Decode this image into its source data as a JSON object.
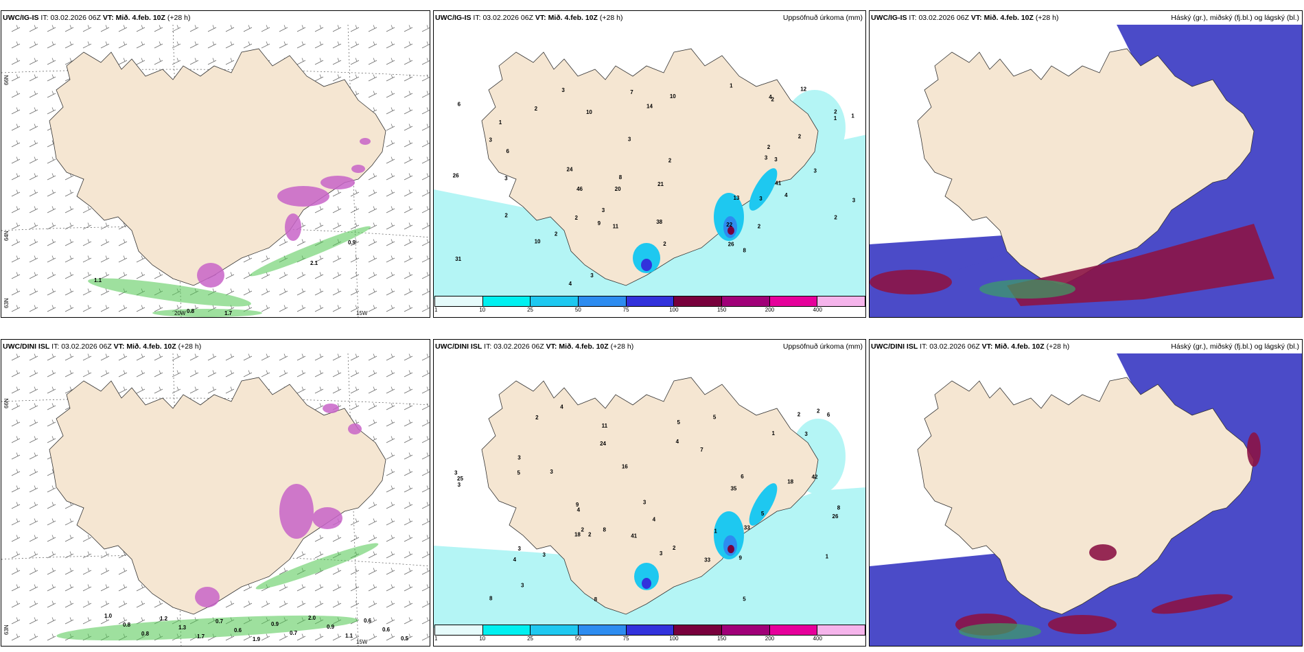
{
  "row_top": {
    "model": "UWC/IG-IS",
    "it_label": "IT:",
    "it_value": "03.02.2026 06Z",
    "vt_label": "VT:",
    "vt_value": "Mið. 4.feb. 10Z",
    "lead": "(+28 h)"
  },
  "row_bottom": {
    "model": "UWC/DINI ISL",
    "it_label": "IT:",
    "it_value": "03.02.2026 06Z",
    "vt_label": "VT:",
    "vt_value": "Mið. 4.feb. 10Z",
    "lead": "(+28 h)"
  },
  "precip_title": "Uppsöfnuð úrkoma (mm)",
  "cloud_title": "Háský (gr.), miðský (fj.bl.) og lágský (bl.)",
  "axis_labels": {
    "lat66": "66N",
    "lat64": "64N",
    "lat63": "63N",
    "lon20": "20W",
    "lon15": "15W"
  },
  "colorbar": {
    "ticks": [
      "1",
      "10",
      "25",
      "50",
      "75",
      "100",
      "150",
      "200",
      "400"
    ],
    "colors": [
      "#e6fbfb",
      "#00f0f0",
      "#1ec8f0",
      "#2d8cf0",
      "#3232dc",
      "#78003c",
      "#a00078",
      "#e6009b",
      "#f5b4eb"
    ]
  },
  "colors": {
    "land": "#f5e6d2",
    "precip_light": "#b4f5f5",
    "precip_mid": "#1ec8f0",
    "snow": "#c864c8",
    "green": "#50c850",
    "cloud_high": "#4b4bc8",
    "cloud_low": "#8c1446"
  },
  "wind_top_values": [
    "1.1",
    "0.8",
    "1.7",
    "2.1",
    "0.9"
  ],
  "wind_bottom_values": [
    "1.0",
    "0.8",
    "0.8",
    "1.2",
    "1.3",
    "1.7",
    "0.7",
    "0.6",
    "1.9",
    "0.9",
    "0.7",
    "2.0",
    "0.9",
    "1.1",
    "0.6",
    "0.6",
    "0.5"
  ],
  "precip_top_values": [
    "2",
    "10",
    "1",
    "2",
    "1",
    "3",
    "13",
    "3",
    "21",
    "3",
    "22",
    "10",
    "20",
    "4",
    "11",
    "26",
    "31",
    "38",
    "3",
    "2",
    "2",
    "2",
    "7",
    "3",
    "2",
    "1",
    "14",
    "3",
    "46",
    "8",
    "6",
    "4",
    "3",
    "2",
    "2",
    "1",
    "9",
    "3",
    "12",
    "8",
    "26",
    "24",
    "41",
    "2",
    "3",
    "6",
    "2",
    "10",
    "4",
    "3",
    "2",
    "2",
    "3"
  ],
  "precip_bottom_values": [
    "2",
    "1",
    "8",
    "1",
    "3",
    "8",
    "16",
    "24",
    "3",
    "26",
    "9",
    "8",
    "33",
    "35",
    "3",
    "42",
    "33",
    "2",
    "4",
    "3",
    "4",
    "18",
    "7",
    "1",
    "2",
    "9",
    "6",
    "8",
    "5",
    "4",
    "3",
    "4",
    "4",
    "3",
    "11",
    "18",
    "25",
    "41",
    "5",
    "6",
    "2",
    "2",
    "3",
    "3",
    "3",
    "3",
    "5",
    "5",
    "2",
    "5"
  ]
}
